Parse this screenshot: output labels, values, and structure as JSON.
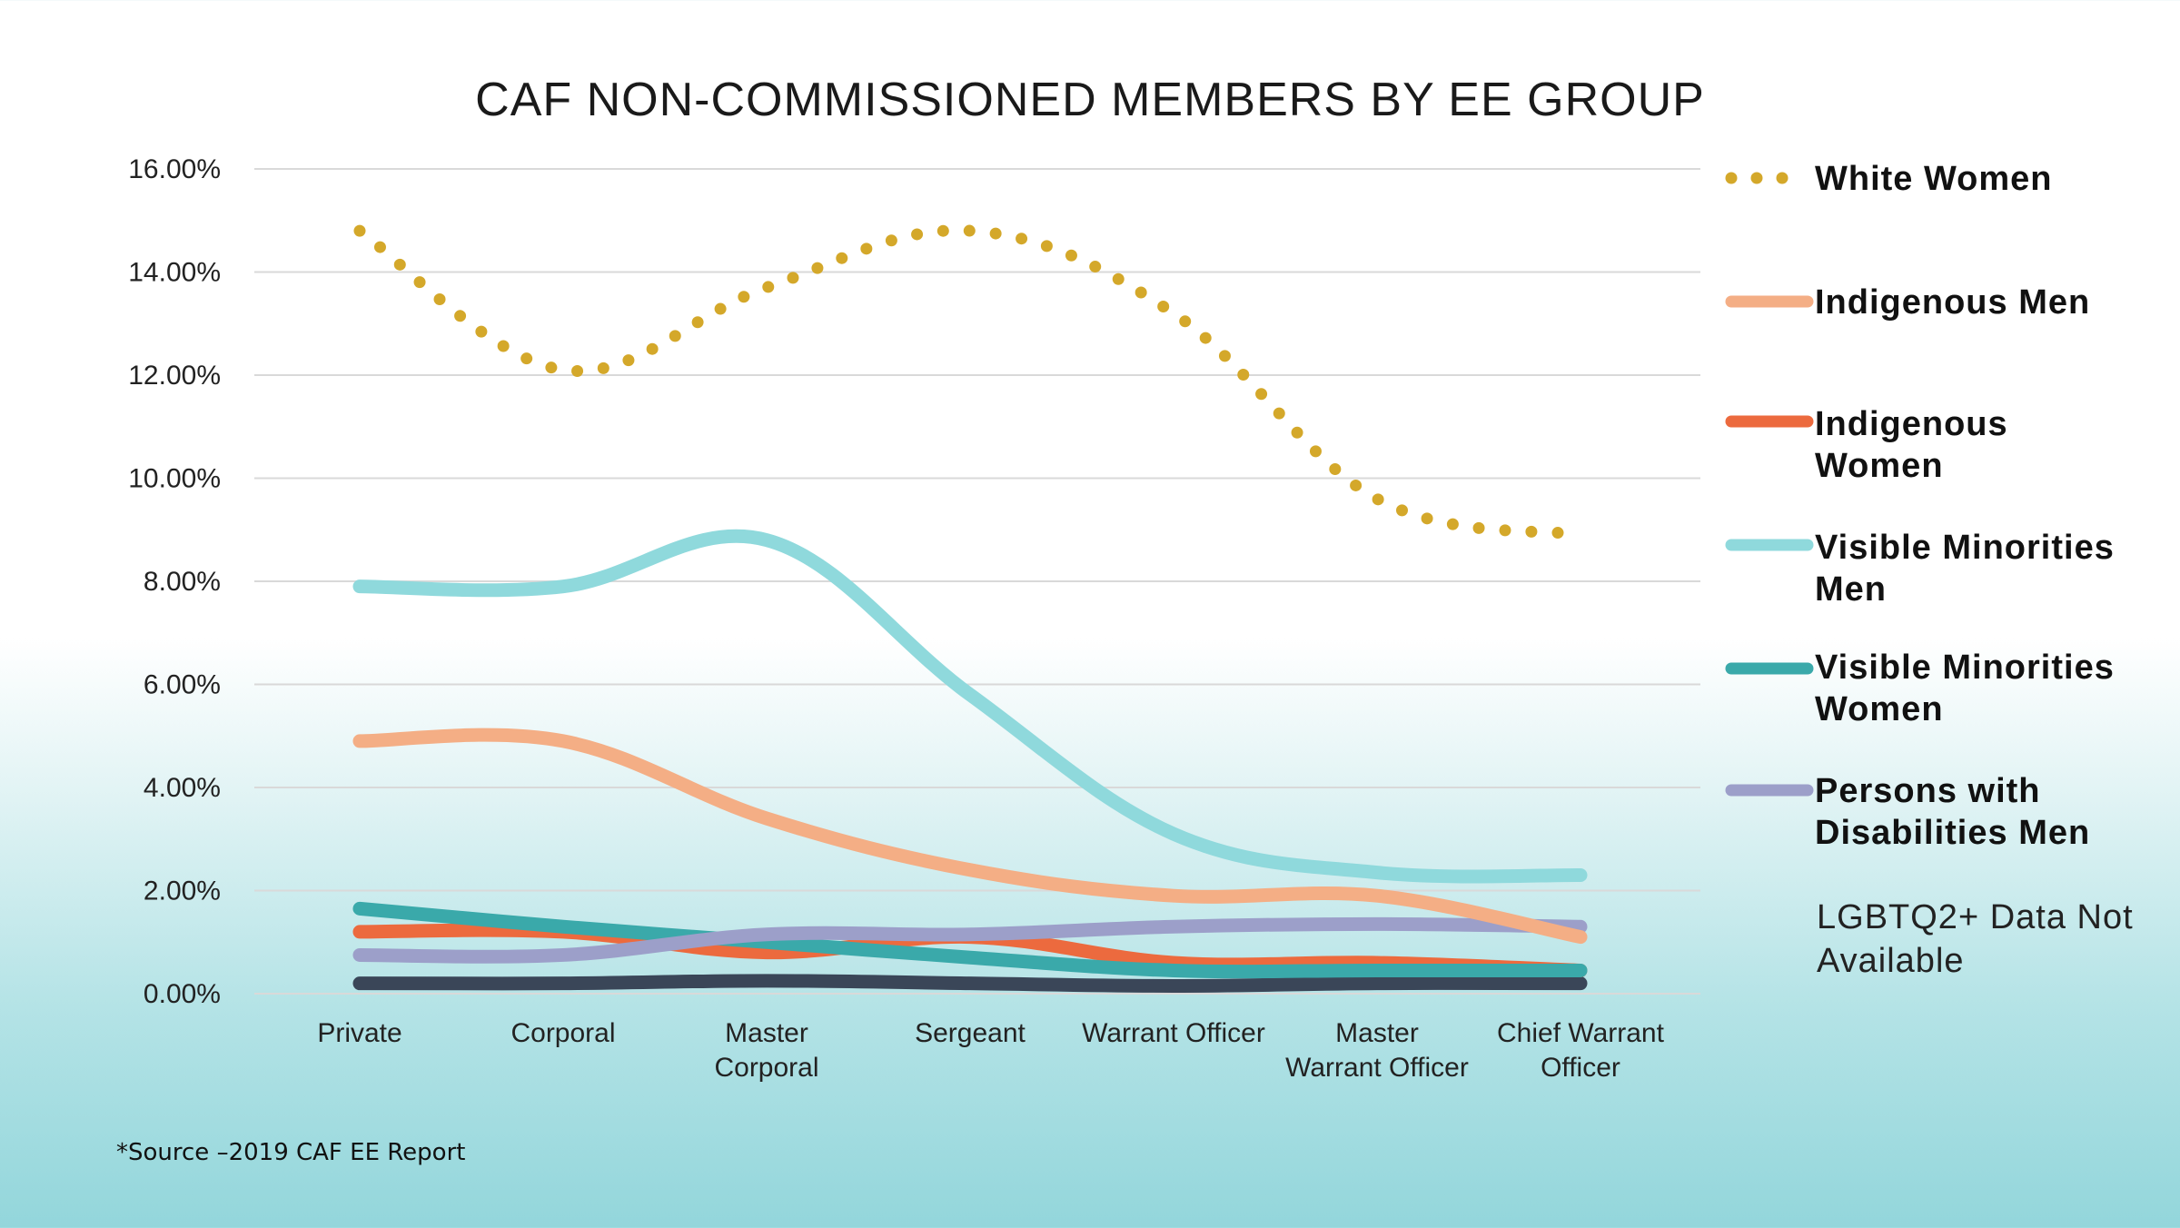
{
  "chart_data": {
    "type": "line",
    "title": "CAF NON-COMMISSIONED  MEMBERS BY EE GROUP",
    "categories": [
      "Private",
      "Corporal",
      "Master Corporal",
      "Sergeant",
      "Warrant Officer",
      "Master Warrant Officer",
      "Chief Warrant Officer"
    ],
    "category_lines": [
      [
        "Private"
      ],
      [
        "Corporal"
      ],
      [
        "Master",
        "Corporal"
      ],
      [
        "Sergeant"
      ],
      [
        "Warrant Officer"
      ],
      [
        "Master",
        "Warrant Officer"
      ],
      [
        "Chief Warrant",
        "Officer"
      ]
    ],
    "y_ticks": [
      "0.00%",
      "2.00%",
      "4.00%",
      "6.00%",
      "8.00%",
      "10.00%",
      "12.00%",
      "14.00%",
      "16.00%"
    ],
    "ylim": [
      0,
      16
    ],
    "grid": true,
    "legend_position": "right",
    "series": [
      {
        "name": "White Women",
        "color": "#d4a82a",
        "style": "dotted",
        "values": [
          14.8,
          12.1,
          13.7,
          14.8,
          13.2,
          9.6,
          8.9
        ]
      },
      {
        "name": "Indigenous Men",
        "color": "#f4ae85",
        "style": "solid",
        "values": [
          4.9,
          4.9,
          3.4,
          2.4,
          1.9,
          1.9,
          1.1
        ]
      },
      {
        "name": "Indigenous Women",
        "color": "#ec6a3e",
        "style": "solid",
        "values": [
          1.2,
          1.2,
          0.8,
          1.1,
          0.6,
          0.6,
          0.45
        ]
      },
      {
        "name": "Visible Minorities Men",
        "color": "#8fd9dc",
        "style": "solid",
        "values": [
          7.9,
          7.9,
          8.8,
          5.8,
          3.1,
          2.35,
          2.3
        ]
      },
      {
        "name": "Visible Minorities Women",
        "color": "#3aa9aa",
        "style": "solid",
        "values": [
          1.65,
          1.3,
          1.0,
          0.7,
          0.45,
          0.45,
          0.45
        ]
      },
      {
        "name": "Persons with Disabilities Men",
        "color": "#9c9fc9",
        "style": "solid",
        "values": [
          0.75,
          0.75,
          1.15,
          1.15,
          1.3,
          1.35,
          1.3
        ]
      },
      {
        "name": "",
        "color": "#3a4658",
        "style": "solid",
        "values": [
          0.2,
          0.2,
          0.25,
          0.2,
          0.15,
          0.2,
          0.2
        ]
      }
    ]
  },
  "legend": {
    "items": [
      {
        "label": "White Women"
      },
      {
        "label": "Indigenous Men"
      },
      {
        "label": "Indigenous Women"
      },
      {
        "label": "Visible Minorities Men"
      },
      {
        "label": "Visible Minorities Women"
      },
      {
        "label": "Persons with Disabilities Men"
      }
    ]
  },
  "note": "LGBTQ2+ Data Not Available",
  "source": "*Source –2019 CAF EE Report"
}
